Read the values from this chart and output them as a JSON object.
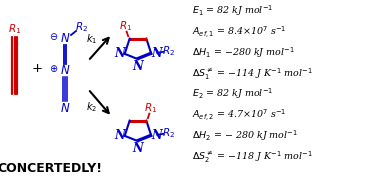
{
  "bg_color": "#ffffff",
  "red": "#cc0000",
  "blue": "#0000cc",
  "black": "#000000",
  "figsize": [
    3.71,
    1.89
  ],
  "dpi": 100,
  "kinetics1": [
    "$E_1$ = 82 kJ mol$^{-1}$",
    "$A_{ef,1}$ = 8.4×10$^{7}$ s$^{-1}$",
    "$\\Delta H_1$ = −280 kJ mol$^{-1}$",
    "$\\Delta S_1^{\\neq}$ = −114 J K$^{-1}$ mol$^{-1}$"
  ],
  "kinetics2": [
    "$E_2$ = 82 kJ mol$^{-1}$",
    "$A_{ef,2}$ = 4.7×10$^{7}$ s$^{-1}$",
    "$\\Delta H_2$ = − 280 kJ mol$^{-1}$",
    "$\\Delta S_2^{\\neq}$ = −118 J K$^{-1}$ mol$^{-1}$"
  ],
  "concertedly": "CONCERTEDLY!"
}
